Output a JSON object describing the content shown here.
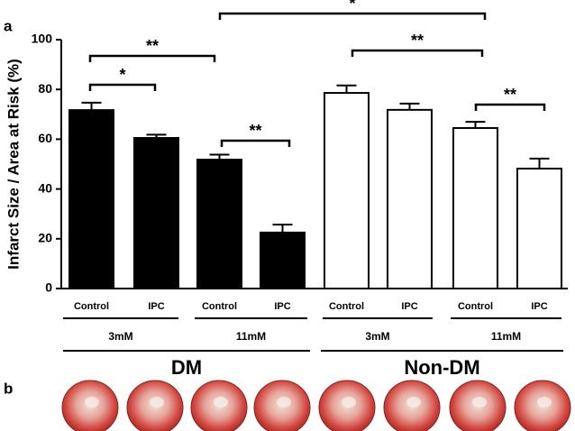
{
  "chart_data": {
    "type": "bar",
    "panel_labels": [
      "a",
      "b"
    ],
    "ylabel": "Infarct Size / Area at Risk (%)",
    "categories": [
      "Control",
      "IPC",
      "Control",
      "IPC",
      "Control",
      "IPC",
      "Control",
      "IPC"
    ],
    "values": [
      71.7,
      60.5,
      51.8,
      22.5,
      78.6,
      71.8,
      64.5,
      48.2
    ],
    "errors": [
      3,
      1.3,
      2,
      3.2,
      3,
      2.5,
      2.5,
      4
    ],
    "colors": [
      "#000000",
      "#000000",
      "#000000",
      "#000000",
      "#ffffff",
      "#ffffff",
      "#ffffff",
      "#ffffff"
    ],
    "concentration_groups": [
      "3mM",
      "11mM",
      "3mM",
      "11mM"
    ],
    "condition_groups": [
      "DM",
      "Non-DM"
    ],
    "annotations": [
      "*",
      "**",
      "**",
      "*",
      "**",
      "**"
    ],
    "ylim": [
      0,
      100
    ],
    "yticks": [
      0,
      20,
      40,
      60,
      80,
      100
    ]
  }
}
